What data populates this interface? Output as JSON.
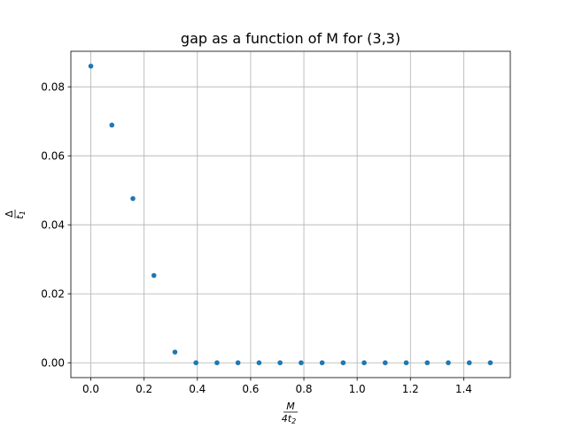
{
  "chart_data": {
    "type": "scatter",
    "title": "gap as a function of M for (3,3)",
    "xlabel": "M / 4t₂",
    "ylabel": "Δ / t₁",
    "xlim": [
      -0.075,
      1.575
    ],
    "ylim": [
      -0.0043,
      0.0903
    ],
    "x_ticks": [
      "0.0",
      "0.2",
      "0.4",
      "0.6",
      "0.8",
      "1.0",
      "1.2",
      "1.4"
    ],
    "y_ticks": [
      "0.00",
      "0.02",
      "0.04",
      "0.06",
      "0.08"
    ],
    "grid": true,
    "marker_color": "#1f77b4",
    "series": [
      {
        "x": [
          0.0,
          0.0789,
          0.1579,
          0.2368,
          0.3158,
          0.3947,
          0.4737,
          0.5526,
          0.6316,
          0.7105,
          0.7895,
          0.8684,
          0.9474,
          1.0263,
          1.1053,
          1.1842,
          1.2632,
          1.3421,
          1.4211,
          1.5
        ],
        "y": [
          0.086,
          0.0689,
          0.0476,
          0.0253,
          0.0031,
          0.0,
          0.0,
          0.0,
          0.0,
          0.0,
          0.0,
          0.0,
          0.0,
          0.0,
          0.0,
          0.0,
          0.0,
          0.0,
          0.0,
          0.0
        ]
      }
    ]
  }
}
